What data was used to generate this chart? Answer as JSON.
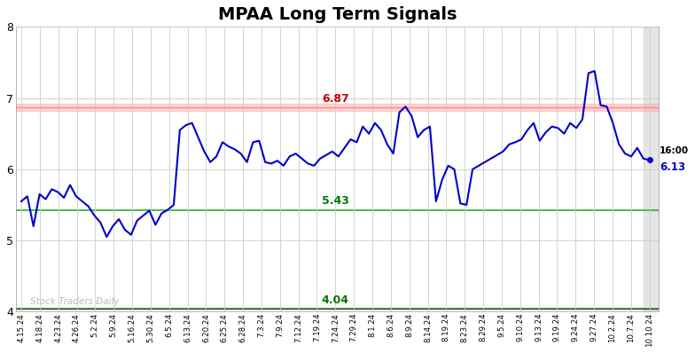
{
  "title": "MPAA Long Term Signals",
  "title_fontsize": 14,
  "title_fontweight": "bold",
  "x_labels": [
    "4.15.24",
    "4.18.24",
    "4.23.24",
    "4.26.24",
    "5.2.24",
    "5.9.24",
    "5.16.24",
    "5.30.24",
    "6.5.24",
    "6.13.24",
    "6.20.24",
    "6.25.24",
    "6.28.24",
    "7.3.24",
    "7.9.24",
    "7.12.24",
    "7.19.24",
    "7.24.24",
    "7.29.24",
    "8.1.24",
    "8.6.24",
    "8.9.24",
    "8.14.24",
    "8.19.24",
    "8.23.24",
    "8.29.24",
    "9.5.24",
    "9.10.24",
    "9.13.24",
    "9.19.24",
    "9.24.24",
    "9.27.24",
    "10.2.24",
    "10.7.24",
    "10.10.24"
  ],
  "y_values": [
    5.55,
    5.62,
    5.2,
    5.65,
    5.58,
    5.72,
    5.68,
    5.6,
    5.78,
    5.62,
    5.55,
    5.48,
    5.35,
    5.25,
    5.05,
    5.2,
    5.3,
    5.15,
    5.08,
    5.28,
    5.35,
    5.42,
    5.22,
    5.38,
    5.43,
    5.5,
    6.55,
    6.62,
    6.65,
    6.45,
    6.25,
    6.1,
    6.18,
    6.38,
    6.32,
    6.28,
    6.22,
    6.1,
    6.38,
    6.4,
    6.1,
    6.08,
    6.12,
    6.05,
    6.18,
    6.22,
    6.15,
    6.08,
    6.05,
    6.15,
    6.2,
    6.25,
    6.18,
    6.3,
    6.42,
    6.38,
    6.6,
    6.5,
    6.65,
    6.55,
    6.35,
    6.22,
    6.8,
    6.88,
    6.75,
    6.45,
    6.55,
    6.6,
    5.55,
    5.85,
    6.05,
    6.0,
    5.52,
    5.5,
    6.0,
    6.05,
    6.1,
    6.15,
    6.2,
    6.25,
    6.35,
    6.38,
    6.42,
    6.55,
    6.65,
    6.4,
    6.52,
    6.6,
    6.58,
    6.5,
    6.65,
    6.58,
    6.7,
    7.35,
    7.38,
    6.9,
    6.88,
    6.65,
    6.35,
    6.22,
    6.18,
    6.3,
    6.15,
    6.13
  ],
  "line_color": "#0000cc",
  "line_width": 1.5,
  "red_hline": 6.87,
  "red_hline_color": "#ffaaaa",
  "red_hline_label_color": "#cc0000",
  "green_hline1": 5.43,
  "green_hline2": 4.04,
  "green_hline_color": "#55bb55",
  "green_hline_label_color": "#007700",
  "black_hline": 4.04,
  "black_hline_color": "#444444",
  "watermark": "Stock Traders Daily",
  "watermark_color": "#bbbbbb",
  "last_label": "16:00",
  "last_value_label": "6.13",
  "last_dot_color": "#0000cc",
  "ylim": [
    4.0,
    8.0
  ],
  "yticks": [
    4,
    5,
    6,
    7,
    8
  ],
  "bg_color": "#ffffff",
  "grid_color": "#cccccc",
  "right_bar_color": "#cccccc"
}
